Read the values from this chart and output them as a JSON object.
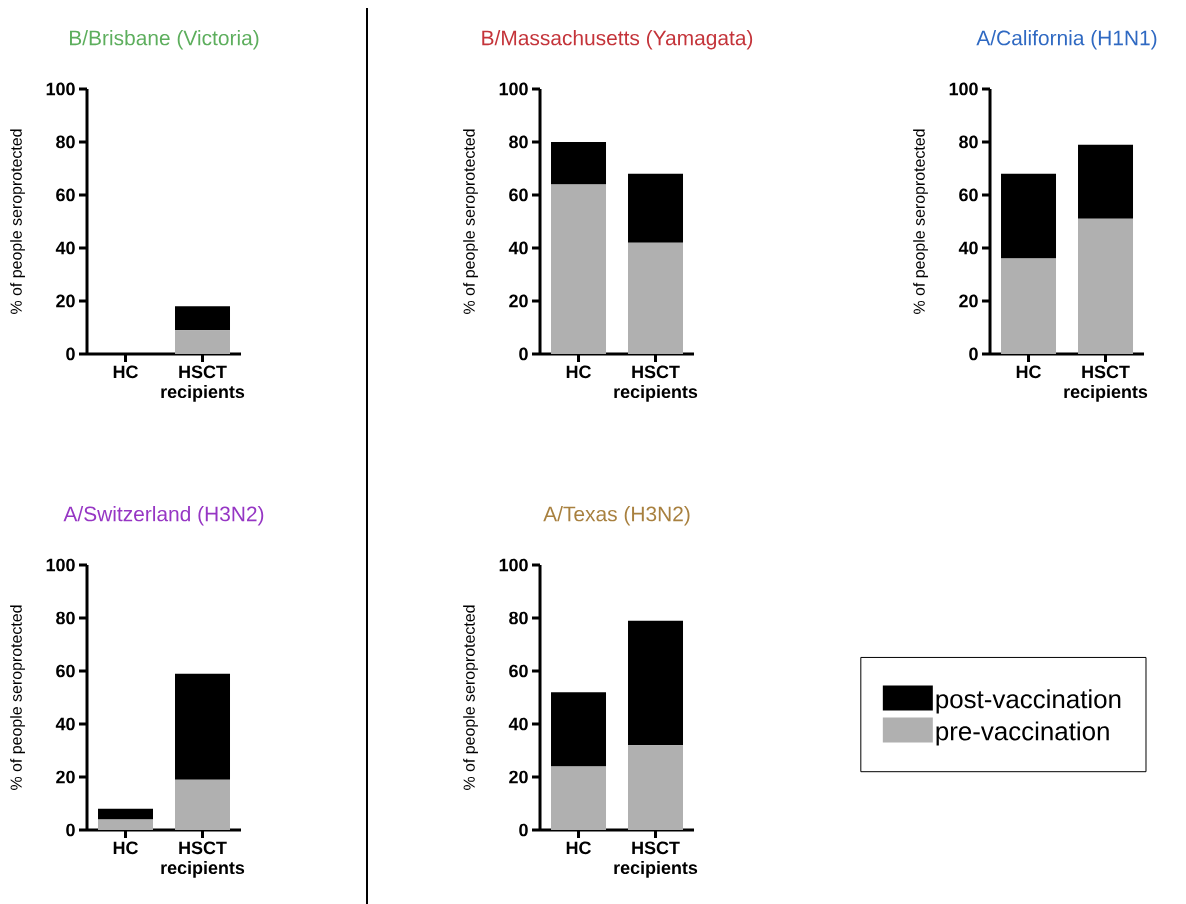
{
  "chart_data": [
    {
      "type": "bar",
      "title": "B/Brisbane (Victoria)",
      "ylabel": "% of people seroprotected",
      "categories": [
        "HC",
        "HSCT recipients"
      ],
      "stacked": true,
      "ylim": [
        0,
        100
      ],
      "yticks": [
        0,
        20,
        40,
        60,
        80,
        100
      ],
      "series": [
        {
          "color": "#b0b0b0",
          "values": [
            0,
            9
          ]
        },
        {
          "color": "#000000",
          "values": [
            0,
            9
          ]
        }
      ]
    },
    {
      "type": "bar",
      "title": "B/Massachusetts (Yamagata)",
      "ylabel": "% of people seroprotected",
      "categories": [
        "HC",
        "HSCT recipients"
      ],
      "stacked": true,
      "ylim": [
        0,
        100
      ],
      "yticks": [
        0,
        20,
        40,
        60,
        80,
        100
      ],
      "series": [
        {
          "color": "#b0b0b0",
          "values": [
            64,
            42
          ]
        },
        {
          "color": "#000000",
          "values": [
            16,
            26
          ]
        }
      ]
    },
    {
      "type": "bar",
      "title": "A/California (H1N1)",
      "ylabel": "% of people seroprotected",
      "categories": [
        "HC",
        "HSCT recipients"
      ],
      "stacked": true,
      "ylim": [
        0,
        100
      ],
      "yticks": [
        0,
        20,
        40,
        60,
        80,
        100
      ],
      "series": [
        {
          "color": "#b0b0b0",
          "values": [
            36,
            51
          ]
        },
        {
          "color": "#000000",
          "values": [
            32,
            28
          ]
        }
      ]
    },
    {
      "type": "bar",
      "title": "A/Switzerland (H3N2)",
      "ylabel": "% of people seroprotected",
      "categories": [
        "HC",
        "HSCT recipients"
      ],
      "stacked": true,
      "ylim": [
        0,
        100
      ],
      "yticks": [
        0,
        20,
        40,
        60,
        80,
        100
      ],
      "series": [
        {
          "color": "#b0b0b0",
          "values": [
            4,
            19
          ]
        },
        {
          "color": "#000000",
          "values": [
            4,
            40
          ]
        }
      ]
    },
    {
      "type": "bar",
      "title": "A/Texas (H3N2)",
      "ylabel": "% of people seroprotected",
      "categories": [
        "HC",
        "HSCT recipients"
      ],
      "stacked": true,
      "ylim": [
        0,
        100
      ],
      "yticks": [
        0,
        20,
        40,
        60,
        80,
        100
      ],
      "legend": "right",
      "series": [
        {
          "name": "pre-vaccination",
          "color": "#b0b0b0",
          "values": [
            24,
            32
          ]
        },
        {
          "name": "post-vaccination",
          "color": "#000000",
          "values": [
            28,
            47
          ]
        }
      ]
    }
  ]
}
